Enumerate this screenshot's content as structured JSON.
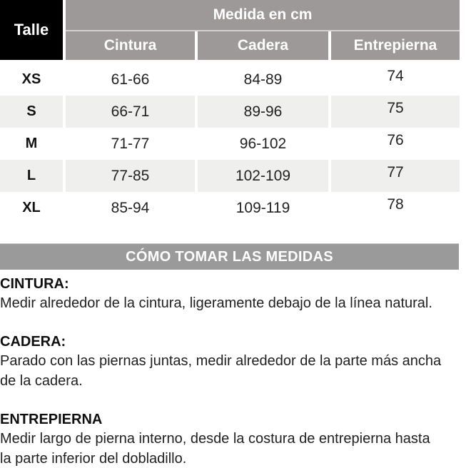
{
  "size_table": {
    "corner_label": "Talle",
    "group_header": "Medida en cm",
    "columns": [
      "Cintura",
      "Cadera",
      "Entrepierna"
    ],
    "rows": [
      {
        "size": "XS",
        "cintura": "61-66",
        "cadera": "84-89",
        "entrepierna": "74"
      },
      {
        "size": "S",
        "cintura": "66-71",
        "cadera": "89-96",
        "entrepierna": "75"
      },
      {
        "size": "M",
        "cintura": "71-77",
        "cadera": "96-102",
        "entrepierna": "76"
      },
      {
        "size": "L",
        "cintura": "77-85",
        "cadera": "102-109",
        "entrepierna": "77"
      },
      {
        "size": "XL",
        "cintura": "85-94",
        "cadera": "109-119",
        "entrepierna": "78"
      }
    ]
  },
  "measure_guide": {
    "banner_title": "CÓMO TOMAR LAS MEDIDAS",
    "sections": [
      {
        "heading": "CINTURA:",
        "lines": [
          "Medir alrededor de la cintura, ligeramente debajo de la línea natural."
        ]
      },
      {
        "heading": "CADERA:",
        "lines": [
          "Parado con las piernas juntas, medir alrededor de la parte más ancha",
          "de la cadera."
        ]
      },
      {
        "heading": "ENTREPIERNA",
        "lines": [
          "Medir largo de pierna interno, desde la costura de entrepierna hasta",
          "la parte inferior del dobladillo."
        ]
      }
    ]
  },
  "colors": {
    "header_black": "#000000",
    "header_gray": "#9c9998",
    "banner_gray": "#9a9a9a",
    "row_alt_gray": "#efefee",
    "text": "#1b1b1b"
  }
}
